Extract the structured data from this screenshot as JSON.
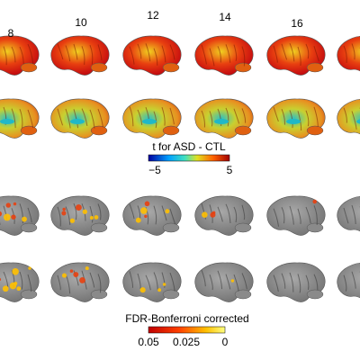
{
  "columns": [
    "8",
    "10",
    "12",
    "14",
    "16"
  ],
  "colorbar_top": {
    "label": "t for ASD - CTL",
    "ticks": [
      "−5",
      "5"
    ]
  },
  "colorbar_bottom": {
    "label": "FDR-Bonferroni corrected",
    "ticks": [
      "0.05",
      "0.025",
      "0"
    ]
  }
}
